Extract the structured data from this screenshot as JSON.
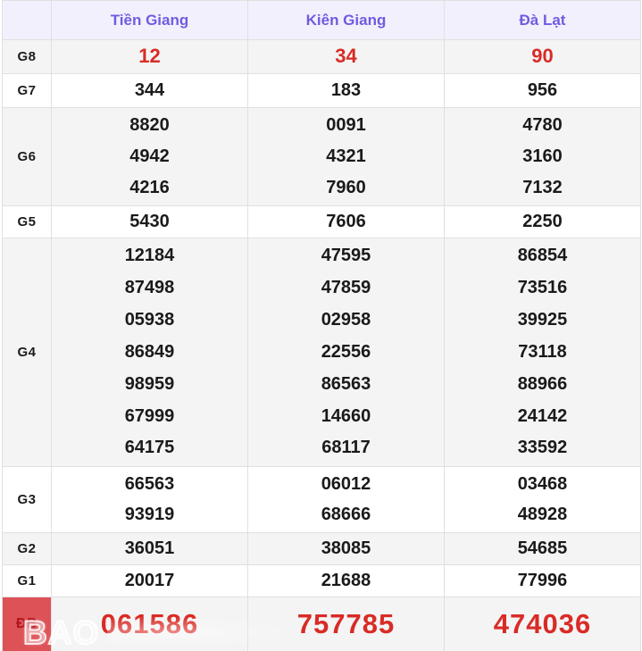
{
  "colors": {
    "header_text": "#6f5ce0",
    "header_bg": "#f2f0fc",
    "stripe_bg": "#f4f4f4",
    "border": "#e0e0e0",
    "number_black": "#1a1a1a",
    "number_red": "#d92b26",
    "special_label_bg": "#dd5257",
    "special_label_text": "#b3131c"
  },
  "table": {
    "corner_label": "",
    "provinces": [
      "Tiền Giang",
      "Kiên Giang",
      "Đà Lạt"
    ],
    "rows": [
      {
        "label": "G8",
        "style": "red",
        "values": [
          [
            "12"
          ],
          [
            "34"
          ],
          [
            "90"
          ]
        ]
      },
      {
        "label": "G7",
        "style": "normal",
        "values": [
          [
            "344"
          ],
          [
            "183"
          ],
          [
            "956"
          ]
        ]
      },
      {
        "label": "G6",
        "style": "normal",
        "values": [
          [
            "8820",
            "4942",
            "4216"
          ],
          [
            "0091",
            "4321",
            "7960"
          ],
          [
            "4780",
            "3160",
            "7132"
          ]
        ]
      },
      {
        "label": "G5",
        "style": "normal",
        "values": [
          [
            "5430"
          ],
          [
            "7606"
          ],
          [
            "2250"
          ]
        ]
      },
      {
        "label": "G4",
        "style": "normal",
        "values": [
          [
            "12184",
            "87498",
            "05938",
            "86849",
            "98959",
            "67999",
            "64175"
          ],
          [
            "47595",
            "47859",
            "02958",
            "22556",
            "86563",
            "14660",
            "68117"
          ],
          [
            "86854",
            "73516",
            "39925",
            "73118",
            "88966",
            "24142",
            "33592"
          ]
        ]
      },
      {
        "label": "G3",
        "style": "normal",
        "values": [
          [
            "66563",
            "93919"
          ],
          [
            "06012",
            "68666"
          ],
          [
            "03468",
            "48928"
          ]
        ]
      },
      {
        "label": "G2",
        "style": "normal",
        "values": [
          [
            "36051"
          ],
          [
            "38085"
          ],
          [
            "54685"
          ]
        ]
      },
      {
        "label": "G1",
        "style": "normal",
        "values": [
          [
            "20017"
          ],
          [
            "21688"
          ],
          [
            "77996"
          ]
        ]
      },
      {
        "label": "ĐB",
        "style": "special",
        "values": [
          [
            "061586"
          ],
          [
            "757785"
          ],
          [
            "474036"
          ]
        ]
      }
    ]
  },
  "watermark": {
    "text": "BAO"
  }
}
